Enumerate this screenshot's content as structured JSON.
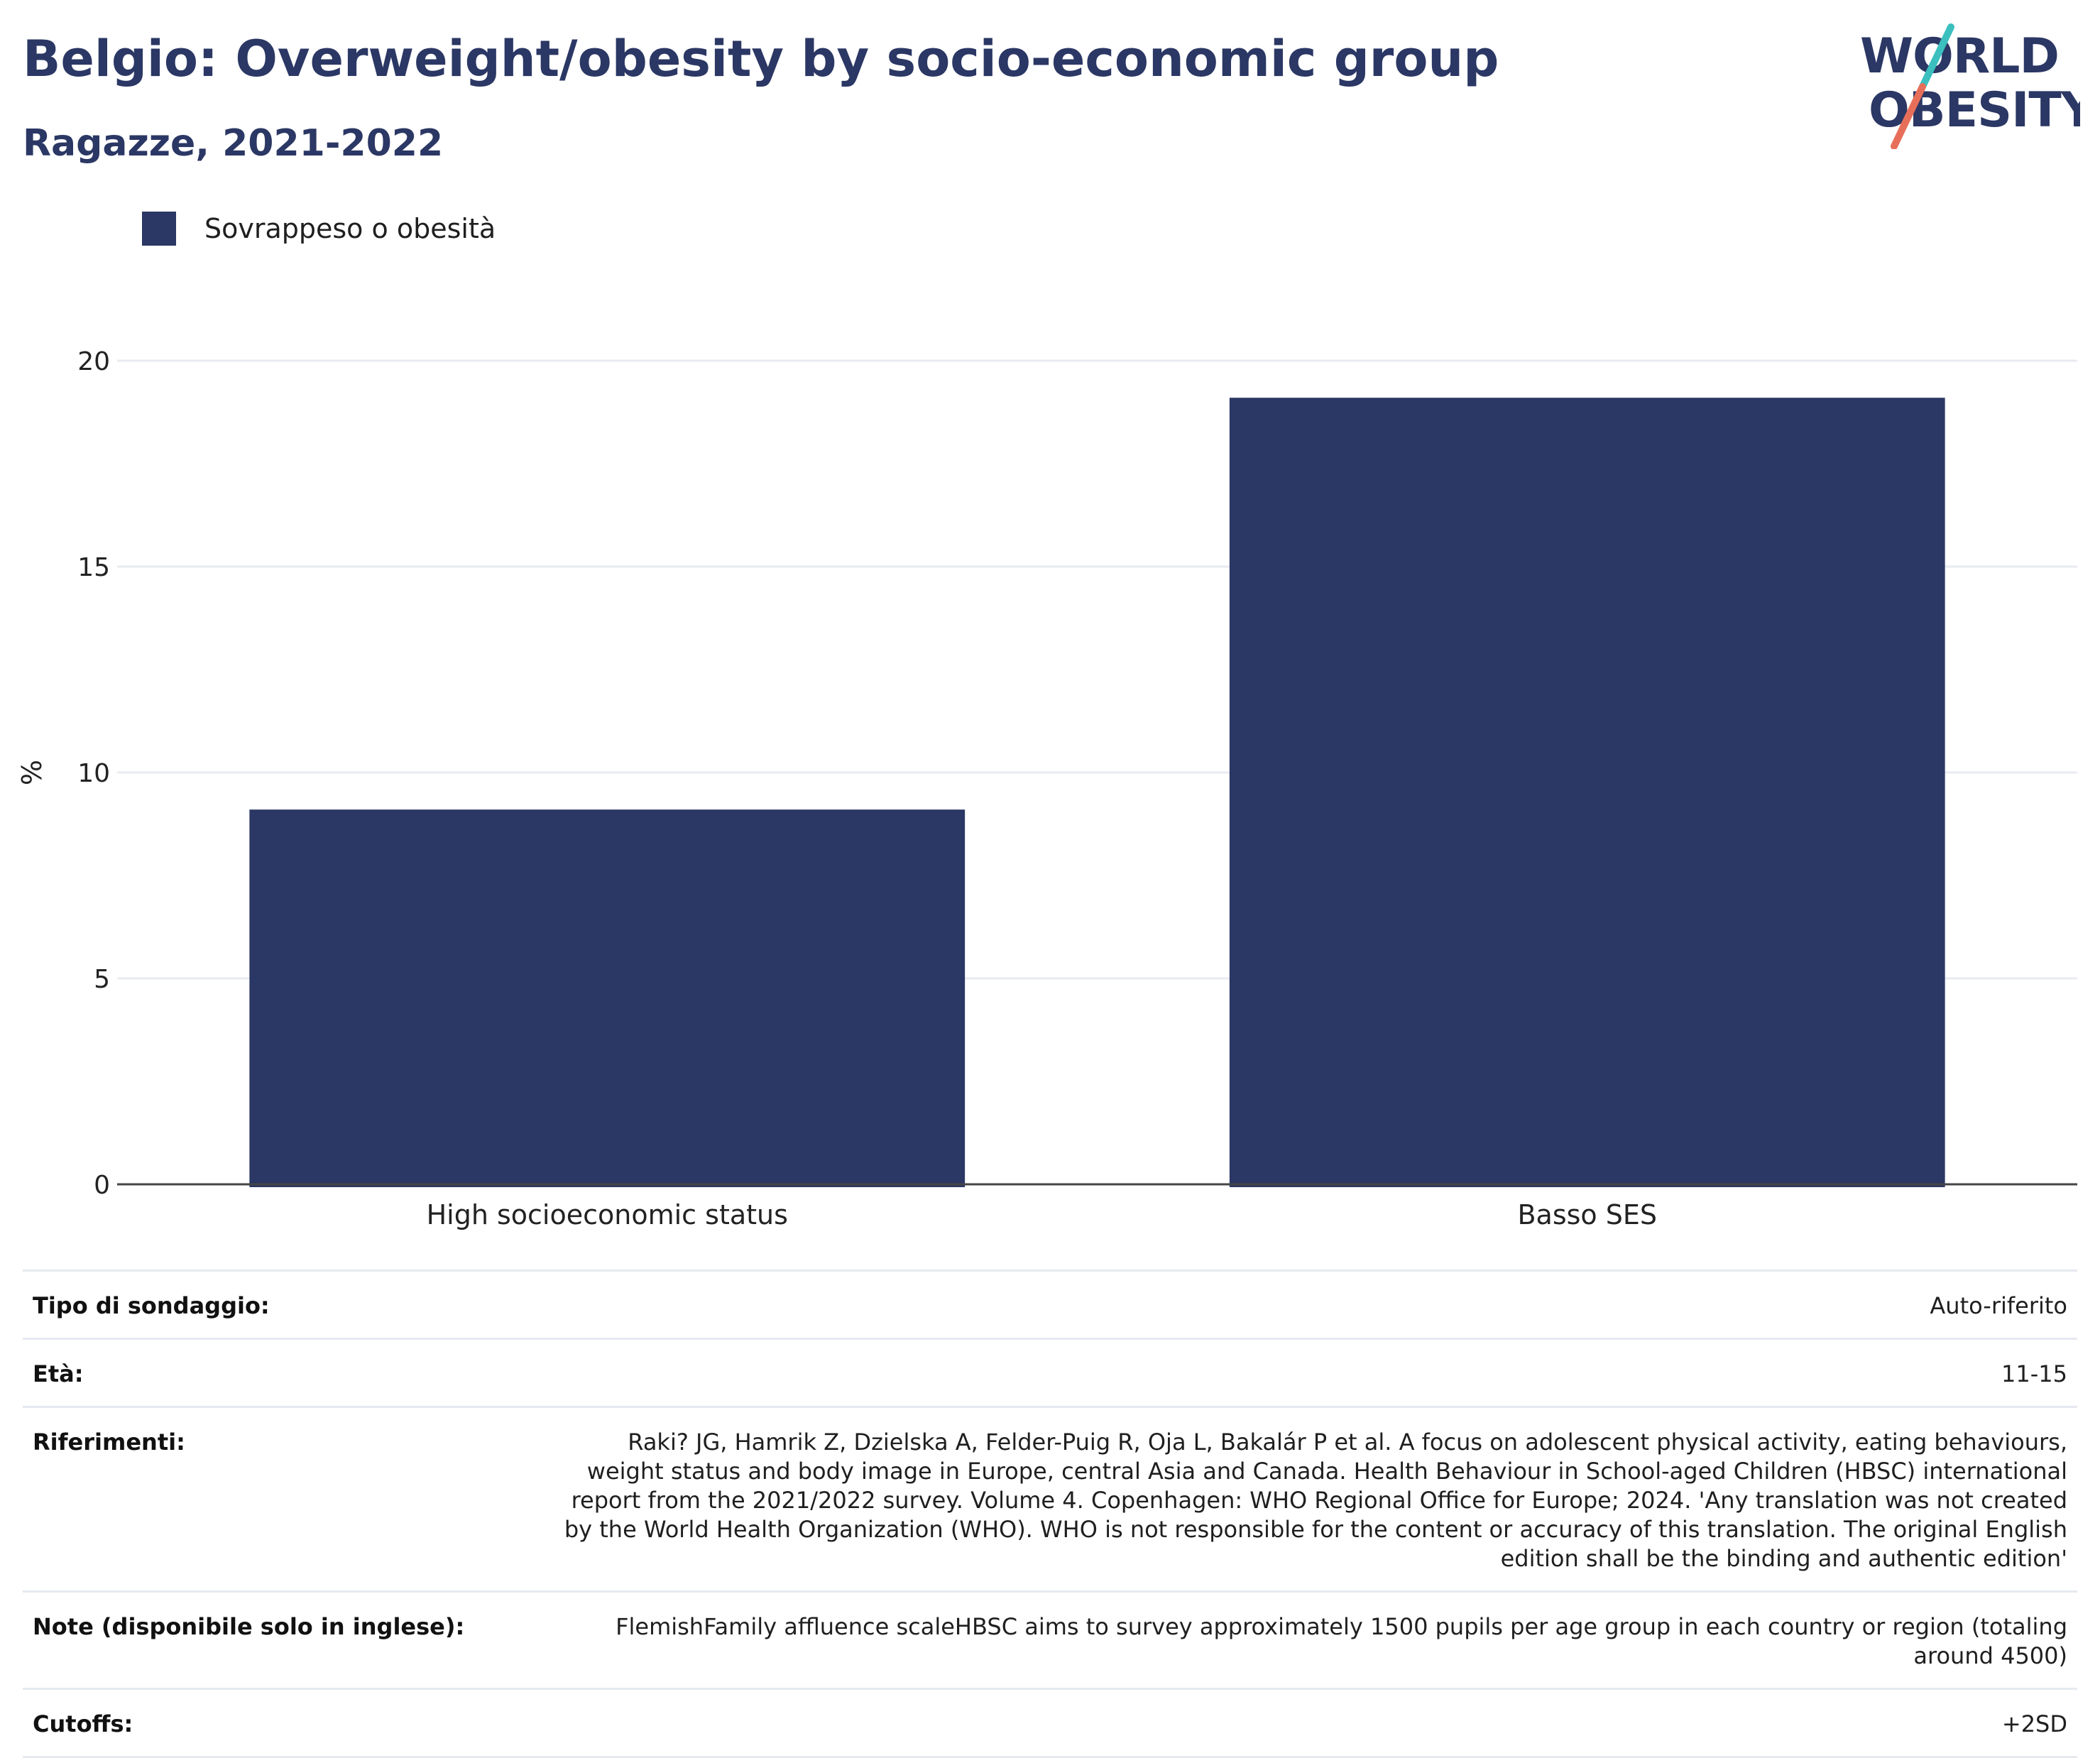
{
  "header": {
    "title": "Belgio: Overweight/obesity by socio-economic group",
    "subtitle": "Ragazze, 2021-2022"
  },
  "logo": {
    "line1": "WORLD",
    "line2": "OBESITY"
  },
  "colors": {
    "bar": "#2b3764",
    "title": "#2b3764",
    "logo_teal": "#3bbfbf",
    "logo_coral": "#e76f5a"
  },
  "chart_data": {
    "type": "bar",
    "categories": [
      "High socioeconomic status",
      "Basso SES"
    ],
    "series": [
      {
        "name": "Sovrappeso o obesità",
        "values": [
          9.1,
          19.1
        ]
      }
    ],
    "ylabel": "%",
    "xlabel": "",
    "ylim": [
      0,
      20
    ],
    "yticks": [
      0,
      5,
      10,
      15,
      20
    ],
    "grid": true,
    "legend_position": "top-left"
  },
  "info_table": [
    {
      "label": "Tipo di sondaggio:",
      "value": "Auto-riferito"
    },
    {
      "label": "Età:",
      "value": "11-15"
    },
    {
      "label": "Riferimenti:",
      "value": "Raki? JG, Hamrik Z, Dzielska A, Felder-Puig R, Oja L, Bakalár P et al. A focus on adolescent physical activity, eating behaviours, weight status and body image in Europe, central Asia and Canada. Health Behaviour in School-aged Children (HBSC) international report from the 2021/2022 survey. Volume 4. Copenhagen: WHO Regional Office for Europe; 2024. 'Any translation was not created by the World Health Organization (WHO). WHO is not responsible for the content or accuracy of this translation. The original English edition shall be the binding and authentic edition'"
    },
    {
      "label": "Note (disponibile solo in inglese):",
      "value": "FlemishFamily affluence scaleHBSC aims to survey approximately 1500 pupils per age group in each country or region (totaling around 4500)"
    },
    {
      "label": "Cutoffs:",
      "value": "+2SD"
    }
  ]
}
